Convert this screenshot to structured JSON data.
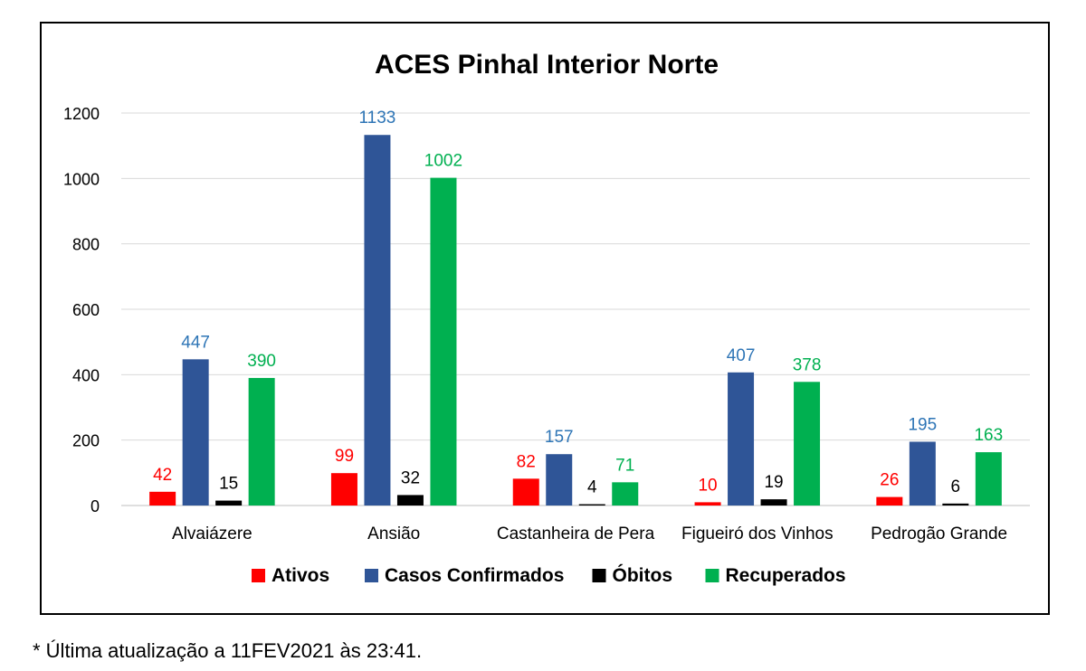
{
  "chart_data": {
    "type": "bar",
    "title": "ACES Pinhal Interior Norte",
    "xlabel": "",
    "ylabel": "",
    "categories": [
      "Alvaiázere",
      "Ansião",
      "Castanheira de Pera",
      "Figueiró dos Vinhos",
      "Pedrogão Grande"
    ],
    "series": [
      {
        "name": "Ativos",
        "color": "#ff0000",
        "values": [
          42,
          99,
          82,
          10,
          26
        ]
      },
      {
        "name": "Casos Confirmados",
        "color": "#2f5597",
        "values": [
          447,
          1133,
          157,
          407,
          195
        ]
      },
      {
        "name": "Óbitos",
        "color": "#000000",
        "values": [
          15,
          32,
          4,
          19,
          6
        ]
      },
      {
        "name": "Recuperados",
        "color": "#00b050",
        "values": [
          390,
          1002,
          71,
          378,
          163
        ]
      }
    ],
    "label_colors": [
      "#ff0000",
      "#2e75b6",
      "#000000",
      "#00b050"
    ],
    "ylim": [
      0,
      1200
    ],
    "yticks": [
      0,
      200,
      400,
      600,
      800,
      1000,
      1200
    ],
    "grid": true,
    "legend_position": "bottom"
  },
  "footnote": "* Última atualização a 11FEV2021 às 23:41."
}
